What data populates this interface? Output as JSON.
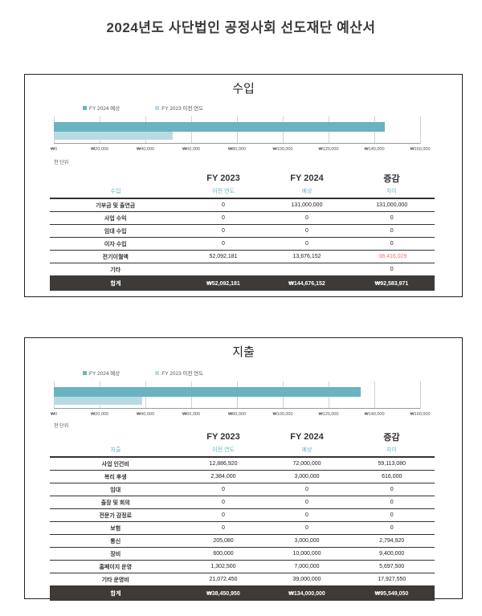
{
  "title": "2024년도 사단법인 공정사회 선도재단 예산서",
  "legend": {
    "fy2024": "FY 2024 예상",
    "fy2023": "FY 2023 이전 연도"
  },
  "unit_label": "천 단위",
  "colors": {
    "fy2024": "#6ab3c0",
    "fy2023": "#b8dbe2",
    "total_bg": "#3e3a37",
    "negative": "#e57b6c"
  },
  "table_headers": {
    "year2023": "FY 2023",
    "year2024": "FY 2024",
    "change": "증감",
    "sub2023": "이전 연도",
    "sub2024": "예상",
    "subchange": "차이"
  },
  "income": {
    "section_title": "수입",
    "column_label": "수입",
    "rows": [
      {
        "label": "기부금 및 출연금",
        "fy2023": "0",
        "fy2024": "131,000,000",
        "diff": "131,000,000"
      },
      {
        "label": "사업 수익",
        "fy2023": "0",
        "fy2024": "0",
        "diff": "0"
      },
      {
        "label": "임대 수입",
        "fy2023": "0",
        "fy2024": "0",
        "diff": "0"
      },
      {
        "label": "이자 수입",
        "fy2023": "0",
        "fy2024": "0",
        "diff": "0"
      },
      {
        "label": "전기이월액",
        "fy2023": "52,092,181",
        "fy2024": "13,676,152",
        "diff": "-38,416,029"
      },
      {
        "label": "기타",
        "fy2023": "",
        "fy2024": "",
        "diff": "0"
      }
    ],
    "total": {
      "label": "합계",
      "fy2023": "₩52,092,181",
      "fy2024": "₩144,676,152",
      "diff": "₩92,583,971"
    }
  },
  "expense": {
    "section_title": "지출",
    "column_label": "지출",
    "rows": [
      {
        "label": "사업 인건비",
        "fy2023": "12,886,920",
        "fy2024": "72,000,000",
        "diff": "59,113,080"
      },
      {
        "label": "복리 후생",
        "fy2023": "2,384,000",
        "fy2024": "3,000,000",
        "diff": "616,000"
      },
      {
        "label": "임대",
        "fy2023": "0",
        "fy2024": "0",
        "diff": "0"
      },
      {
        "label": "출장 및 회의",
        "fy2023": "0",
        "fy2024": "0",
        "diff": "0"
      },
      {
        "label": "전문가 감정료",
        "fy2023": "0",
        "fy2024": "0",
        "diff": "0"
      },
      {
        "label": "보험",
        "fy2023": "0",
        "fy2024": "0",
        "diff": "0"
      },
      {
        "label": "통신",
        "fy2023": "205,080",
        "fy2024": "3,000,000",
        "diff": "2,794,920"
      },
      {
        "label": "장비",
        "fy2023": "600,000",
        "fy2024": "10,000,000",
        "diff": "9,400,000"
      },
      {
        "label": "홈페이지 운영",
        "fy2023": "1,302,500",
        "fy2024": "7,000,000",
        "diff": "5,697,500"
      },
      {
        "label": "기타 운영비",
        "fy2023": "21,072,450",
        "fy2024": "39,000,000",
        "diff": "17,927,550"
      }
    ],
    "total": {
      "label": "합계",
      "fy2023": "₩38,450,950",
      "fy2024": "₩134,000,000",
      "diff": "₩95,549,050"
    }
  },
  "chart_data": [
    {
      "type": "bar",
      "orientation": "horizontal",
      "title": "수입",
      "xlim": [
        0,
        160000
      ],
      "ticks": [
        "₩0",
        "₩20,000",
        "₩40,000",
        "₩60,000",
        "₩80,000",
        "₩100,000",
        "₩120,000",
        "₩140,000",
        "₩160,000"
      ],
      "series": [
        {
          "name": "FY 2024 예상",
          "values": [
            144676
          ]
        },
        {
          "name": "FY 2023 이전 연도",
          "values": [
            52092
          ]
        }
      ]
    },
    {
      "type": "bar",
      "orientation": "horizontal",
      "title": "지출",
      "xlim": [
        0,
        160000
      ],
      "ticks": [
        "₩0",
        "₩20,000",
        "₩40,000",
        "₩60,000",
        "₩80,000",
        "₩100,000",
        "₩120,000",
        "₩140,000",
        "₩160,000"
      ],
      "series": [
        {
          "name": "FY 2024 예상",
          "values": [
            134000
          ]
        },
        {
          "name": "FY 2023 이전 연도",
          "values": [
            38451
          ]
        }
      ]
    }
  ]
}
